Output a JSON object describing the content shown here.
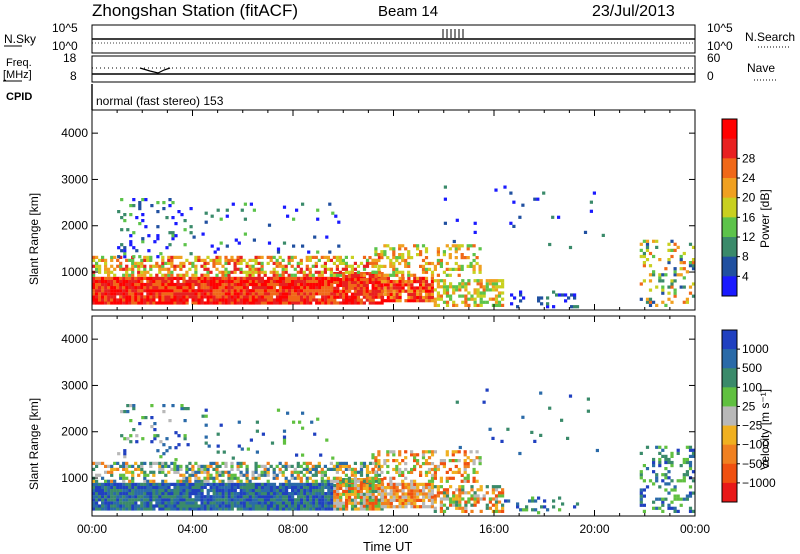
{
  "header": {
    "station": "Zhongshan Station (fitACF)",
    "beam": "Beam 14",
    "date": "23/Jul/2013"
  },
  "top_panels": {
    "nsky_label": "N.Sky",
    "nsky_ticks": [
      "10^5",
      "10^0"
    ],
    "nsearch_label": "N.Search",
    "nsearch_ticks": [
      "10^5",
      "10^0"
    ],
    "freq_label_1": "Freq.",
    "freq_label_2": "[MHz]",
    "freq_ticks": [
      "18",
      "8"
    ],
    "nave_label": "Nave",
    "nave_ticks": [
      "60",
      "0"
    ],
    "cpid_label": "CPID",
    "cpid_text": "normal (fast stereo) 153"
  },
  "chart_data": [
    {
      "type": "heatmap",
      "title": "",
      "quantity": "Power",
      "ylabel": "Slant Range [km]",
      "xlabel": "",
      "ylim": [
        180,
        4500
      ],
      "yticks": [
        "1000",
        "2000",
        "3000",
        "4000"
      ],
      "xlim_hours": [
        0,
        24
      ],
      "colorbar_label": "Power [dB]",
      "colorbar_ticks": [
        "4",
        "8",
        "12",
        "16",
        "20",
        "24",
        "28"
      ],
      "colorbar_colors": [
        "#1a1aff",
        "#2050a0",
        "#3a8a6a",
        "#5cc34a",
        "#c8d020",
        "#f0a020",
        "#f06818",
        "#e82020",
        "#ff0000"
      ]
    },
    {
      "type": "heatmap",
      "title": "",
      "quantity": "Velocity",
      "ylabel": "Slant Range [km]",
      "xlabel": "Time UT",
      "ylim": [
        180,
        4500
      ],
      "yticks": [
        "1000",
        "2000",
        "3000",
        "4000"
      ],
      "xticks": [
        "00:00",
        "04:00",
        "08:00",
        "12:00",
        "16:00",
        "20:00",
        "00:00"
      ],
      "colorbar_label": "Velocity [m s⁻¹]",
      "colorbar_ticks": [
        "1000",
        "500",
        "100",
        "25",
        "−25",
        "−100",
        "−500",
        "−1000"
      ],
      "colorbar_colors": [
        "#2040c0",
        "#2a6aa8",
        "#3a8a6a",
        "#60c040",
        "#b8b8b8",
        "#f0b020",
        "#f08020",
        "#f05010",
        "#e81818"
      ]
    }
  ]
}
